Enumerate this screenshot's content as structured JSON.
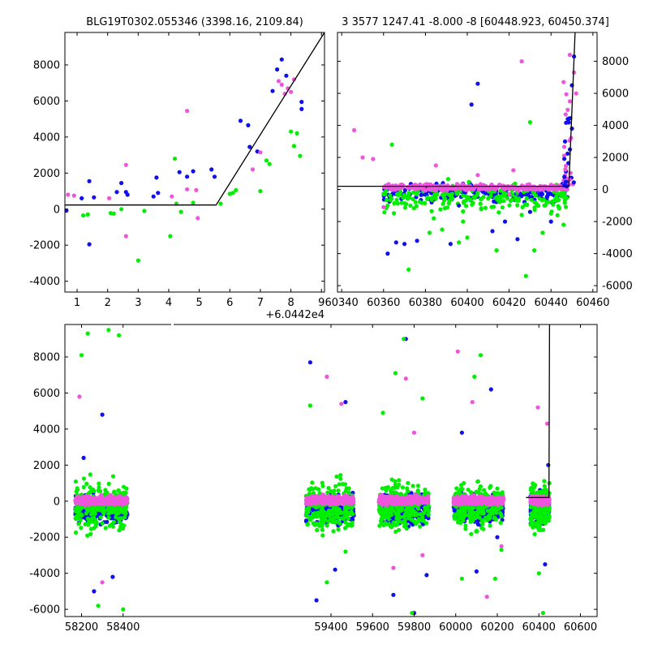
{
  "chart_data": [
    {
      "type": "scatter",
      "title": "BLG19T0302.055346 (3398.16, 2109.84)",
      "x_offset_label": "+6.0442e4",
      "xlim": [
        0.6,
        9.1
      ],
      "ylim": [
        -4600,
        9800
      ],
      "x_ticks": [
        1,
        2,
        3,
        4,
        5,
        6,
        7,
        8,
        9
      ],
      "y_ticks": [
        -4000,
        -2000,
        0,
        2000,
        4000,
        6000,
        8000
      ],
      "y_tick_side": "left",
      "model_line": {
        "x": [
          0.6,
          5.55,
          9.1
        ],
        "y": [
          230,
          230,
          9800
        ]
      },
      "series": [
        {
          "color": "#1010ee",
          "points": [
            [
              0.65,
              -80
            ],
            [
              1.15,
              600
            ],
            [
              1.4,
              1550
            ],
            [
              1.4,
              -1950
            ],
            [
              1.55,
              650
            ],
            [
              2.3,
              950
            ],
            [
              2.45,
              1450
            ],
            [
              2.6,
              950
            ],
            [
              2.65,
              800
            ],
            [
              3.5,
              700
            ],
            [
              3.6,
              1750
            ],
            [
              3.65,
              900
            ],
            [
              4.35,
              2050
            ],
            [
              4.6,
              1800
            ],
            [
              4.8,
              2100
            ],
            [
              5.4,
              2200
            ],
            [
              5.5,
              1800
            ],
            [
              6.35,
              4900
            ],
            [
              6.6,
              4650
            ],
            [
              6.65,
              3450
            ],
            [
              6.9,
              3200
            ],
            [
              7.4,
              6550
            ],
            [
              7.55,
              7750
            ],
            [
              7.7,
              8300
            ],
            [
              7.85,
              7400
            ],
            [
              8.35,
              5950
            ],
            [
              8.35,
              5550
            ]
          ]
        },
        {
          "color": "#ee55dd",
          "points": [
            [
              0.7,
              800
            ],
            [
              0.9,
              750
            ],
            [
              2.05,
              600
            ],
            [
              2.6,
              2450
            ],
            [
              2.6,
              -1500
            ],
            [
              4.1,
              700
            ],
            [
              4.6,
              5450
            ],
            [
              4.6,
              1100
            ],
            [
              4.9,
              1050
            ],
            [
              4.95,
              -500
            ],
            [
              6.75,
              2200
            ],
            [
              7.0,
              3150
            ],
            [
              7.6,
              7100
            ],
            [
              7.7,
              6900
            ],
            [
              7.8,
              6400
            ],
            [
              7.9,
              6700
            ],
            [
              8.0,
              6500
            ],
            [
              8.1,
              7200
            ]
          ]
        },
        {
          "color": "#00ee00",
          "points": [
            [
              1.2,
              -350
            ],
            [
              1.35,
              -300
            ],
            [
              2.1,
              -220
            ],
            [
              2.2,
              -250
            ],
            [
              2.45,
              0
            ],
            [
              3.0,
              -2850
            ],
            [
              3.2,
              -100
            ],
            [
              4.05,
              -1500
            ],
            [
              4.25,
              300
            ],
            [
              4.4,
              -150
            ],
            [
              4.2,
              2800
            ],
            [
              4.8,
              350
            ],
            [
              5.7,
              300
            ],
            [
              6.0,
              850
            ],
            [
              6.1,
              900
            ],
            [
              6.2,
              1050
            ],
            [
              7.0,
              1000
            ],
            [
              7.2,
              2700
            ],
            [
              7.3,
              2500
            ],
            [
              8.0,
              4300
            ],
            [
              8.2,
              4200
            ],
            [
              8.3,
              2950
            ],
            [
              8.1,
              3500
            ]
          ]
        }
      ]
    },
    {
      "type": "scatter",
      "title": "3 3577 1247.41 -8.000 -8 [60448.923, 60450.374]",
      "xlim": [
        60338,
        60462
      ],
      "ylim": [
        -6400,
        9800
      ],
      "x_ticks": [
        60340,
        60360,
        60380,
        60400,
        60420,
        60440,
        60460
      ],
      "y_ticks": [
        -6000,
        -4000,
        -2000,
        0,
        2000,
        4000,
        6000,
        8000
      ],
      "y_tick_side": "right",
      "model_line": {
        "x": [
          60338,
          60448.5,
          60451.5
        ],
        "y": [
          200,
          200,
          9800
        ]
      },
      "series": [
        {
          "color": "#1010ee",
          "points": [
            [
              60362,
              -4000
            ],
            [
              60366,
              -3300
            ],
            [
              60370,
              -3400
            ],
            [
              60376,
              -3200
            ],
            [
              60392,
              -3400
            ],
            [
              60396,
              -1000
            ],
            [
              60402,
              5300
            ],
            [
              60405,
              6600
            ],
            [
              60412,
              -2600
            ],
            [
              60418,
              -2000
            ],
            [
              60424,
              -3100
            ],
            [
              60430,
              -1400
            ],
            [
              60440,
              -2000
            ],
            [
              60448,
              4400
            ],
            [
              60450,
              6500
            ],
            [
              60451,
              8300
            ],
            [
              60449,
              2500
            ],
            [
              60450,
              3800
            ]
          ]
        },
        {
          "color": "#ee55dd",
          "points": [
            [
              60346,
              3700
            ],
            [
              60350,
              2000
            ],
            [
              60355,
              1900
            ],
            [
              60385,
              1500
            ],
            [
              60405,
              900
            ],
            [
              60422,
              1200
            ],
            [
              60426,
              8000
            ],
            [
              60446,
              6700
            ],
            [
              60451,
              7300
            ],
            [
              60449,
              5500
            ],
            [
              60452,
              6000
            ],
            [
              60360,
              -1100
            ],
            [
              60420,
              -300
            ]
          ]
        },
        {
          "color": "#00ee00",
          "points": [
            [
              60364,
              2800
            ],
            [
              60372,
              -5000
            ],
            [
              60382,
              -2700
            ],
            [
              60384,
              -1800
            ],
            [
              60388,
              -2500
            ],
            [
              60396,
              -3300
            ],
            [
              60400,
              -3000
            ],
            [
              60414,
              -3800
            ],
            [
              60428,
              -5400
            ],
            [
              60430,
              4200
            ],
            [
              60432,
              -3800
            ],
            [
              60436,
              -2700
            ],
            [
              60440,
              -1500
            ],
            [
              60446,
              -2200
            ],
            [
              60362,
              -1000
            ],
            [
              60398,
              -2000
            ]
          ]
        }
      ]
    },
    {
      "type": "scatter",
      "xlim": [
        58120,
        60680
      ],
      "ylim": [
        -6400,
        9800
      ],
      "x_ticks": [
        58200,
        58400,
        59400,
        59600,
        59800,
        60000,
        60200,
        60400,
        60600
      ],
      "y_ticks": [
        -6000,
        -4000,
        -2000,
        0,
        2000,
        4000,
        6000,
        8000
      ],
      "y_tick_side": "left",
      "model_line": {
        "x": [
          60338,
          60448.5,
          60451.5
        ],
        "y": [
          200,
          200,
          9800
        ]
      },
      "seasons": [
        [
          58170,
          58420
        ],
        [
          59280,
          59510
        ],
        [
          59630,
          59870
        ],
        [
          59990,
          60230
        ],
        [
          60360,
          60450
        ]
      ],
      "series": [
        {
          "color": "#1010ee",
          "points": [
            [
              58210,
              2400
            ],
            [
              58260,
              -5000
            ],
            [
              58300,
              4800
            ],
            [
              58350,
              -4200
            ],
            [
              59300,
              7700
            ],
            [
              59330,
              -5500
            ],
            [
              59420,
              -3800
            ],
            [
              59470,
              5500
            ],
            [
              59700,
              -5200
            ],
            [
              59760,
              9000
            ],
            [
              59800,
              -6200
            ],
            [
              59860,
              -4100
            ],
            [
              60030,
              3800
            ],
            [
              60100,
              -3900
            ],
            [
              60170,
              6200
            ],
            [
              60200,
              -2000
            ],
            [
              60430,
              -3500
            ],
            [
              60445,
              2000
            ]
          ]
        },
        {
          "color": "#ee55dd",
          "points": [
            [
              58190,
              5800
            ],
            [
              58300,
              -4500
            ],
            [
              59380,
              6900
            ],
            [
              59450,
              5400
            ],
            [
              59700,
              -3700
            ],
            [
              59760,
              6800
            ],
            [
              59800,
              3800
            ],
            [
              59840,
              -3000
            ],
            [
              60010,
              8300
            ],
            [
              60080,
              5500
            ],
            [
              60150,
              -5300
            ],
            [
              60220,
              -2500
            ],
            [
              60395,
              5200
            ],
            [
              60440,
              4300
            ]
          ]
        },
        {
          "color": "#00ee00",
          "points": [
            [
              58200,
              8100
            ],
            [
              58230,
              9300
            ],
            [
              58280,
              -5800
            ],
            [
              58330,
              9500
            ],
            [
              58380,
              9200
            ],
            [
              58400,
              -6000
            ],
            [
              59300,
              5300
            ],
            [
              59380,
              -4500
            ],
            [
              59470,
              -2800
            ],
            [
              59650,
              4900
            ],
            [
              59710,
              7100
            ],
            [
              59750,
              9000
            ],
            [
              59790,
              -6200
            ],
            [
              59840,
              5700
            ],
            [
              60030,
              -4300
            ],
            [
              60090,
              6900
            ],
            [
              60120,
              8100
            ],
            [
              60190,
              -4300
            ],
            [
              60220,
              -2700
            ],
            [
              60400,
              -4000
            ],
            [
              60420,
              -6200
            ]
          ]
        }
      ]
    }
  ]
}
